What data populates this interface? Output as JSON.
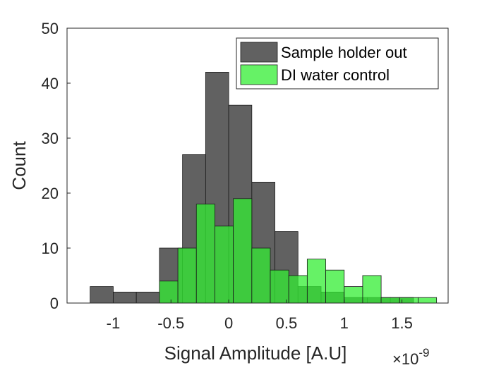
{
  "chart_data": {
    "type": "bar",
    "subtype": "overlapping-histogram",
    "xlabel": "Signal Amplitude [A.U]",
    "ylabel": "Count",
    "x_exponent_base": "×10",
    "x_exponent_power": "-9",
    "xlim": [
      -1.4,
      1.9
    ],
    "ylim": [
      0,
      50
    ],
    "xticks": [
      -1,
      -0.5,
      0,
      0.5,
      1,
      1.5
    ],
    "xtick_labels": [
      "-1",
      "-0.5",
      "0",
      "0.5",
      "1",
      "1.5"
    ],
    "yticks": [
      0,
      10,
      20,
      30,
      40,
      50
    ],
    "ytick_labels": [
      "0",
      "10",
      "20",
      "30",
      "40",
      "50"
    ],
    "legend_position": "top-right",
    "series": [
      {
        "name": "Sample holder out",
        "color": "#595959",
        "opacity": 0.95,
        "bin_edges": [
          -1.2,
          -1.0,
          -0.8,
          -0.6,
          -0.4,
          -0.2,
          0.0,
          0.2,
          0.4,
          0.6,
          0.8,
          1.0,
          1.2,
          1.4,
          1.6
        ],
        "counts": [
          3,
          2,
          2,
          10,
          27,
          42,
          36,
          22,
          13,
          3,
          2,
          1,
          1,
          1
        ]
      },
      {
        "name": "DI water control",
        "color": "#33ee33",
        "opacity": 0.75,
        "bin_edges": [
          -0.6,
          -0.44,
          -0.28,
          -0.12,
          0.04,
          0.2,
          0.36,
          0.52,
          0.68,
          0.84,
          1.0,
          1.16,
          1.32,
          1.48,
          1.64,
          1.8
        ],
        "counts": [
          4,
          10,
          18,
          14,
          19,
          10,
          6,
          5,
          8,
          6,
          3,
          5,
          1,
          1,
          1
        ]
      }
    ]
  }
}
